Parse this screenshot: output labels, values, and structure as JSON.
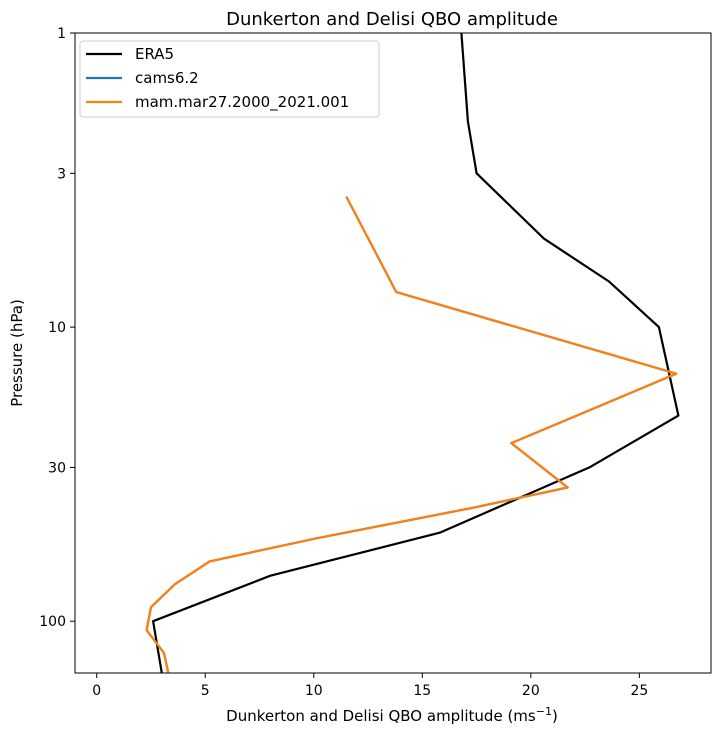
{
  "chart_data": {
    "type": "line",
    "title": "Dunkerton and Delisi QBO amplitude",
    "xlabel_main": "Dunkerton and Delisi QBO amplitude (ms",
    "xlabel_sup": "−1",
    "xlabel_end": ")",
    "ylabel": "Pressure (hPa)",
    "xlim": [
      -1,
      28.3
    ],
    "ylim": [
      150,
      1
    ],
    "yscale": "log",
    "xticks": [
      0,
      5,
      10,
      15,
      20,
      25
    ],
    "yticks": [
      1,
      3,
      10,
      30,
      100
    ],
    "legend_position": "upper-left",
    "series": [
      {
        "name": "ERA5",
        "color": "#000000",
        "points": [
          {
            "x": 16.8,
            "y": 1
          },
          {
            "x": 17.1,
            "y": 2
          },
          {
            "x": 17.5,
            "y": 3
          },
          {
            "x": 20.6,
            "y": 5
          },
          {
            "x": 23.6,
            "y": 7
          },
          {
            "x": 25.9,
            "y": 10
          },
          {
            "x": 26.8,
            "y": 20
          },
          {
            "x": 22.7,
            "y": 30
          },
          {
            "x": 15.8,
            "y": 50
          },
          {
            "x": 8.0,
            "y": 70
          },
          {
            "x": 2.6,
            "y": 100
          },
          {
            "x": 3.0,
            "y": 150
          }
        ]
      },
      {
        "name": "cams6.2",
        "color": "#1f77b4",
        "points": [
          {
            "x": 11.5,
            "y": 3.6
          },
          {
            "x": 13.8,
            "y": 7.6
          },
          {
            "x": 26.7,
            "y": 14.4
          },
          {
            "x": 19.1,
            "y": 24.8
          },
          {
            "x": 21.7,
            "y": 35.1
          },
          {
            "x": 17.3,
            "y": 41.2
          },
          {
            "x": 10.1,
            "y": 52.3
          },
          {
            "x": 5.2,
            "y": 62.6
          },
          {
            "x": 3.6,
            "y": 74.9
          },
          {
            "x": 2.5,
            "y": 89.6
          },
          {
            "x": 2.3,
            "y": 107.3
          },
          {
            "x": 3.1,
            "y": 128.3
          },
          {
            "x": 3.3,
            "y": 150
          }
        ]
      },
      {
        "name": "mam.mar27.2000_2021.001",
        "color": "#ff7f0e",
        "points": [
          {
            "x": 11.5,
            "y": 3.6
          },
          {
            "x": 13.8,
            "y": 7.6
          },
          {
            "x": 26.7,
            "y": 14.4
          },
          {
            "x": 19.1,
            "y": 24.8
          },
          {
            "x": 21.7,
            "y": 35.1
          },
          {
            "x": 17.3,
            "y": 41.2
          },
          {
            "x": 10.1,
            "y": 52.3
          },
          {
            "x": 5.2,
            "y": 62.6
          },
          {
            "x": 3.6,
            "y": 74.9
          },
          {
            "x": 2.5,
            "y": 89.6
          },
          {
            "x": 2.3,
            "y": 107.3
          },
          {
            "x": 3.1,
            "y": 128.3
          },
          {
            "x": 3.3,
            "y": 150
          }
        ]
      }
    ]
  }
}
